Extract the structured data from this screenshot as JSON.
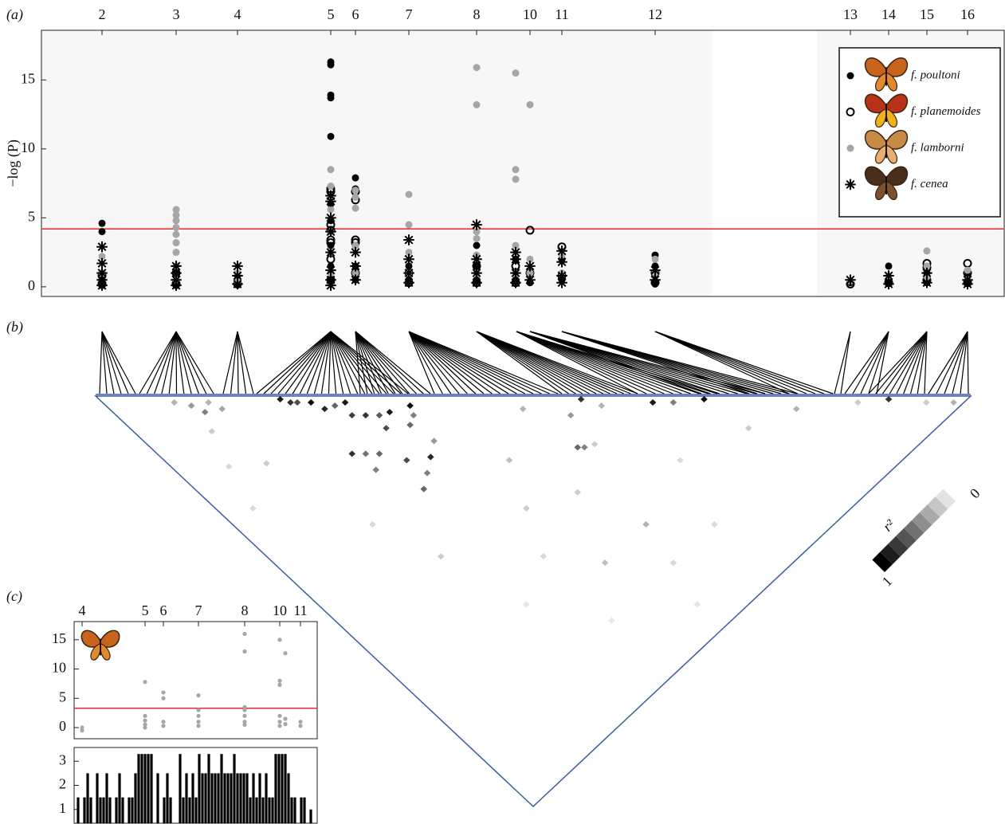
{
  "chart_data": [
    {
      "type": "scatter",
      "panel_label": "(a)",
      "y_label": "−log (P)",
      "xlim": [
        0,
        1208
      ],
      "ylim": [
        -0.7,
        18.6
      ],
      "xticks": [
        {
          "value": 76,
          "label": "2"
        },
        {
          "value": 169,
          "label": "3"
        },
        {
          "value": 246,
          "label": "4"
        },
        {
          "value": 363,
          "label": "5"
        },
        {
          "value": 394,
          "label": "6"
        },
        {
          "value": 461,
          "label": "7"
        },
        {
          "value": 546,
          "label": "8"
        },
        {
          "value": 613,
          "label": "10"
        },
        {
          "value": 653,
          "label": "11"
        },
        {
          "value": 770,
          "label": "12"
        },
        {
          "value": 1015,
          "label": "13"
        },
        {
          "value": 1063,
          "label": "14"
        },
        {
          "value": 1111,
          "label": "15"
        },
        {
          "value": 1162,
          "label": "16"
        }
      ],
      "yticks": [
        0,
        5,
        10,
        15
      ],
      "threshold": 4.2,
      "threshold_color": "#e8262b",
      "legend": "upper right",
      "series": [
        {
          "name": "f. poultoni",
          "color": "#000000",
          "marker": "filled",
          "x": [
            76,
            76,
            76,
            76,
            76,
            169,
            169,
            169,
            246,
            246,
            363,
            363,
            363,
            363,
            363,
            363,
            363,
            363,
            363,
            363,
            394,
            394,
            394,
            394,
            394,
            461,
            461,
            546,
            546,
            546,
            595,
            595,
            613,
            613,
            653,
            653,
            770,
            770,
            770,
            770,
            1015,
            1063,
            1063,
            1111,
            1111,
            1162,
            1162
          ],
          "values": [
            4.6,
            4.0,
            1.0,
            0.5,
            0.1,
            1.2,
            0.5,
            0.1,
            0.8,
            0.2,
            16.3,
            16.1,
            13.9,
            13.7,
            10.9,
            6.0,
            4.8,
            3.0,
            1.5,
            0.5,
            7.9,
            7.1,
            3.0,
            1.5,
            0.5,
            1.5,
            0.5,
            3.0,
            1.5,
            0.5,
            2.0,
            0.5,
            1.0,
            0.3,
            2.0,
            0.5,
            2.3,
            1.5,
            0.8,
            0.2,
            0.3,
            1.5,
            0.3,
            1.0,
            0.3,
            0.8,
            0.3
          ]
        },
        {
          "name": "f. planemoides",
          "color": "#000000",
          "marker": "open",
          "x": [
            76,
            76,
            169,
            169,
            246,
            363,
            363,
            363,
            363,
            363,
            363,
            363,
            363,
            394,
            394,
            394,
            394,
            394,
            461,
            461,
            546,
            546,
            595,
            595,
            613,
            613,
            653,
            653,
            770,
            770,
            1015,
            1063,
            1111,
            1111,
            1111,
            1162,
            1162,
            1162
          ],
          "values": [
            0.8,
            0.2,
            1.0,
            0.2,
            0.2,
            7.1,
            6.9,
            4.5,
            4.1,
            3.4,
            3.2,
            2.0,
            0.5,
            6.9,
            6.3,
            3.4,
            3.2,
            1.0,
            1.0,
            0.3,
            1.5,
            0.3,
            1.5,
            0.3,
            4.1,
            1.0,
            2.9,
            0.8,
            1.0,
            0.3,
            0.2,
            0.3,
            1.7,
            1.4,
            0.5,
            1.7,
            1.0,
            0.3
          ]
        },
        {
          "name": "f. lamborni",
          "color": "#a6a6a6",
          "marker": "filled",
          "x": [
            76,
            76,
            169,
            169,
            169,
            169,
            169,
            169,
            169,
            169,
            169,
            246,
            246,
            363,
            363,
            363,
            363,
            363,
            363,
            394,
            394,
            394,
            394,
            394,
            461,
            461,
            461,
            461,
            546,
            546,
            546,
            546,
            546,
            546,
            595,
            595,
            595,
            595,
            595,
            613,
            613,
            613,
            653,
            653,
            770,
            770,
            1015,
            1063,
            1111,
            1111,
            1111,
            1162,
            1162
          ],
          "values": [
            2.2,
            1.0,
            5.6,
            5.2,
            4.8,
            4.3,
            3.8,
            3.2,
            2.5,
            1.5,
            0.5,
            1.0,
            0.4,
            8.5,
            7.3,
            5.6,
            4.0,
            2.5,
            1.0,
            7.0,
            6.5,
            5.7,
            3.0,
            1.0,
            6.7,
            4.5,
            2.5,
            1.0,
            15.9,
            13.2,
            4.0,
            3.5,
            2.3,
            1.0,
            15.5,
            8.5,
            7.8,
            3.0,
            1.0,
            13.2,
            2.0,
            1.0,
            2.3,
            1.0,
            2.0,
            1.0,
            0.4,
            0.8,
            2.6,
            1.5,
            0.6,
            1.2,
            0.5
          ]
        },
        {
          "name": "f. cenea",
          "color": "#000000",
          "marker": "asterisk",
          "x": [
            76,
            76,
            76,
            76,
            76,
            169,
            169,
            169,
            169,
            246,
            246,
            246,
            363,
            363,
            363,
            363,
            363,
            363,
            363,
            363,
            394,
            394,
            394,
            461,
            461,
            461,
            461,
            546,
            546,
            546,
            546,
            595,
            595,
            595,
            595,
            613,
            613,
            653,
            653,
            653,
            653,
            770,
            770,
            1015,
            1063,
            1063,
            1111,
            1111,
            1162,
            1162
          ],
          "values": [
            2.9,
            1.7,
            1.0,
            0.5,
            0.1,
            1.5,
            1.0,
            0.5,
            0.1,
            1.5,
            0.8,
            0.2,
            6.6,
            6.2,
            5.0,
            4.0,
            2.5,
            1.2,
            0.5,
            0.1,
            2.5,
            1.5,
            0.5,
            3.4,
            2.0,
            1.0,
            0.3,
            4.5,
            2.0,
            1.0,
            0.3,
            2.5,
            2.0,
            1.0,
            0.3,
            1.5,
            0.5,
            2.6,
            1.8,
            0.8,
            0.3,
            1.2,
            0.5,
            0.5,
            0.8,
            0.2,
            1.0,
            0.3,
            0.5,
            0.2
          ]
        }
      ]
    },
    {
      "type": "heatmap",
      "panel_label": "(b)",
      "colorbar_label": "r²",
      "clim": [
        0,
        1
      ],
      "cticks": [
        0,
        1
      ],
      "x": [
        26,
        27,
        28,
        30,
        31,
        33,
        35,
        34,
        36,
        38,
        40,
        37,
        32,
        30,
        28,
        29,
        35,
        39,
        41,
        43,
        44,
        42,
        36,
        33,
        10,
        12,
        13,
        15,
        16,
        11,
        8,
        14,
        5,
        70,
        72,
        80,
        83,
        88,
        60,
        65,
        75,
        90,
        100,
        110,
        115,
        120,
        124,
        50,
        55,
        60,
        58,
        45,
        40,
        48,
        62,
        63,
        40,
        55,
        66,
        20,
        25,
        30,
        70
      ],
      "y": [
        27,
        29,
        30,
        32,
        35,
        36,
        37,
        40,
        42,
        44,
        45,
        47,
        50,
        48,
        46,
        52,
        55,
        58,
        50,
        49,
        47,
        56,
        60,
        62,
        12,
        15,
        18,
        17,
        20,
        22,
        30,
        35,
        40,
        71,
        75,
        82,
        85,
        89,
        64,
        80,
        95,
        100,
        104,
        112,
        116,
        122,
        126,
        70,
        85,
        100,
        110,
        80,
        90,
        100,
        78,
        79,
        110,
        120,
        72,
        60,
        75,
        95,
        110
      ],
      "values": [
        0.9,
        0.8,
        0.7,
        0.95,
        0.85,
        0.6,
        0.9,
        0.75,
        0.8,
        0.65,
        0.9,
        0.7,
        0.6,
        0.55,
        0.8,
        0.5,
        0.7,
        0.85,
        0.6,
        0.5,
        0.95,
        0.4,
        0.5,
        0.6,
        0.3,
        0.4,
        0.5,
        0.3,
        0.35,
        0.2,
        0.15,
        0.2,
        0.15,
        0.8,
        0.3,
        0.9,
        0.5,
        0.95,
        0.3,
        0.2,
        0.15,
        0.2,
        0.3,
        0.2,
        0.8,
        0.2,
        0.3,
        0.25,
        0.2,
        0.3,
        0.15,
        0.2,
        0.15,
        0.25,
        0.6,
        0.5,
        0.1,
        0.1,
        0.4,
        0.15,
        0.2,
        0.1,
        0.15
      ]
    },
    {
      "type": "scatter",
      "panel_label": "(c)",
      "color": "#a6a6a6",
      "xlim": [
        0,
        305
      ],
      "ylim": [
        -1.9,
        18.1
      ],
      "xticks": [
        {
          "value": 10,
          "label": "4"
        },
        {
          "value": 89,
          "label": "5"
        },
        {
          "value": 112,
          "label": "6"
        },
        {
          "value": 156,
          "label": "7"
        },
        {
          "value": 214,
          "label": "8"
        },
        {
          "value": 258,
          "label": "10"
        },
        {
          "value": 284,
          "label": "11"
        }
      ],
      "yticks": [
        0,
        5,
        10,
        15
      ],
      "threshold": 3.3,
      "threshold_color": "#e8262b",
      "x": [
        10,
        10,
        89,
        89,
        89,
        89,
        89,
        112,
        112,
        112,
        112,
        156,
        156,
        156,
        156,
        156,
        214,
        214,
        214,
        214,
        214,
        214,
        214,
        258,
        258,
        258,
        258,
        258,
        258,
        265,
        265,
        265,
        284,
        284
      ],
      "values": [
        0,
        -0.5,
        7.8,
        2.0,
        1.2,
        0.5,
        0,
        6.0,
        5.0,
        1.0,
        0.3,
        5.5,
        3.0,
        2.0,
        1.0,
        0.3,
        16.0,
        13.0,
        3.5,
        3.0,
        2.0,
        1.0,
        0.5,
        15.0,
        8.0,
        7.3,
        2.0,
        1.0,
        0.3,
        12.7,
        1.5,
        0.6,
        1.0,
        0.3
      ]
    },
    {
      "type": "bar",
      "color": "#000000",
      "xlim": [
        0,
        305
      ],
      "ylim": [
        0.43,
        3.57
      ],
      "yticks": [
        1,
        2,
        3
      ],
      "x": [
        5,
        9,
        13,
        17,
        21,
        25,
        29,
        33,
        37,
        41,
        45,
        49,
        53,
        57,
        61,
        65,
        69,
        73,
        77,
        81,
        85,
        89,
        93,
        97,
        101,
        105,
        109,
        113,
        117,
        121,
        125,
        129,
        133,
        137,
        141,
        145,
        149,
        153,
        157,
        161,
        165,
        169,
        173,
        177,
        181,
        185,
        189,
        193,
        197,
        201,
        205,
        209,
        213,
        217,
        221,
        225,
        229,
        233,
        237,
        241,
        245,
        249,
        253,
        257,
        261,
        265,
        269,
        273,
        277,
        281,
        285,
        289,
        293,
        297
      ],
      "values": [
        1.5,
        null,
        1.5,
        2.5,
        1.5,
        null,
        2.5,
        1.5,
        1.5,
        2.5,
        1.5,
        null,
        1.5,
        2.5,
        1.5,
        null,
        1.5,
        1.5,
        2.5,
        3.3,
        3.3,
        3.3,
        3.3,
        3.3,
        null,
        2.5,
        null,
        1.5,
        2.5,
        1.5,
        null,
        null,
        3.3,
        1.5,
        2.5,
        1.5,
        2.5,
        1.5,
        3.3,
        2.5,
        2.5,
        3.3,
        2.5,
        2.5,
        2.5,
        3.3,
        2.5,
        2.5,
        2.5,
        3.3,
        2.5,
        2.5,
        2.5,
        2.5,
        1.5,
        2.5,
        1.5,
        2.5,
        1.5,
        2.5,
        1.5,
        1.5,
        3.3,
        3.3,
        3.3,
        3.3,
        2.5,
        1.5,
        1.5,
        null,
        1.5,
        1.5,
        null,
        1.0
      ]
    }
  ]
}
